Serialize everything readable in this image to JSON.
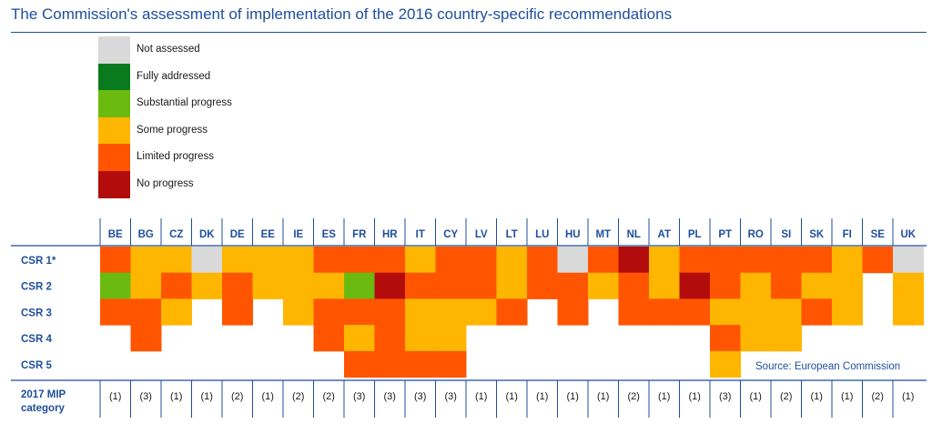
{
  "title": "The Commission's assessment of implementation of the 2016 country-specific recommendations",
  "source": "Source: European Commission",
  "legend": [
    {
      "key": "na",
      "label": "Not assessed",
      "color": "#d9d9d9"
    },
    {
      "key": "full",
      "label": "Fully addressed",
      "color": "#0a7a1f"
    },
    {
      "key": "subst",
      "label": "Substantial progress",
      "color": "#6bba10"
    },
    {
      "key": "some",
      "label": "Some progress",
      "color": "#ffb600"
    },
    {
      "key": "lim",
      "label": "Limited progress",
      "color": "#ff5500"
    },
    {
      "key": "none",
      "label": "No progress",
      "color": "#b20c0c"
    }
  ],
  "chart_data": {
    "type": "heatmap",
    "columns": [
      "BE",
      "BG",
      "CZ",
      "DK",
      "DE",
      "EE",
      "IE",
      "ES",
      "FR",
      "HR",
      "IT",
      "CY",
      "LV",
      "LT",
      "LU",
      "HU",
      "MT",
      "NL",
      "AT",
      "PL",
      "PT",
      "RO",
      "SI",
      "SK",
      "FI",
      "SE",
      "UK"
    ],
    "rows": [
      "CSR 1*",
      "CSR 2",
      "CSR 3",
      "CSR 4",
      "CSR 5"
    ],
    "values": [
      [
        "lim",
        "some",
        "some",
        "na",
        "some",
        "some",
        "some",
        "lim",
        "lim",
        "lim",
        "some",
        "lim",
        "lim",
        "some",
        "lim",
        "na",
        "lim",
        "none",
        "some",
        "lim",
        "lim",
        "lim",
        "lim",
        "lim",
        "some",
        "lim",
        "na"
      ],
      [
        "subst",
        "some",
        "lim",
        "some",
        "lim",
        "some",
        "some",
        "some",
        "subst",
        "none",
        "lim",
        "lim",
        "lim",
        "some",
        "lim",
        "lim",
        "some",
        "lim",
        "some",
        "none",
        "lim",
        "some",
        "lim",
        "some",
        "some",
        "",
        "some"
      ],
      [
        "lim",
        "lim",
        "some",
        "",
        "lim",
        "",
        "some",
        "lim",
        "lim",
        "lim",
        "some",
        "some",
        "some",
        "lim",
        "",
        "lim",
        "",
        "lim",
        "lim",
        "lim",
        "some",
        "some",
        "some",
        "lim",
        "some",
        "",
        "some"
      ],
      [
        "",
        "lim",
        "",
        "",
        "",
        "",
        "",
        "lim",
        "some",
        "lim",
        "some",
        "some",
        "",
        "",
        "",
        "",
        "",
        "",
        "",
        "",
        "lim",
        "some",
        "some",
        "",
        "",
        "",
        ""
      ],
      [
        "",
        "",
        "",
        "",
        "",
        "",
        "",
        "",
        "lim",
        "lim",
        "lim",
        "lim",
        "",
        "",
        "",
        "",
        "",
        "",
        "",
        "",
        "some",
        "",
        "",
        "",
        "",
        "",
        ""
      ]
    ],
    "mip_label": [
      "2017 MIP",
      "category"
    ],
    "mip_category": [
      "(1)",
      "(3)",
      "(1)",
      "(1)",
      "(2)",
      "(1)",
      "(2)",
      "(2)",
      "(3)",
      "(3)",
      "(3)",
      "(3)",
      "(1)",
      "(1)",
      "(1)",
      "(1)",
      "(1)",
      "(2)",
      "(1)",
      "(1)",
      "(3)",
      "(1)",
      "(2)",
      "(1)",
      "(1)",
      "(2)",
      "(1)"
    ]
  }
}
